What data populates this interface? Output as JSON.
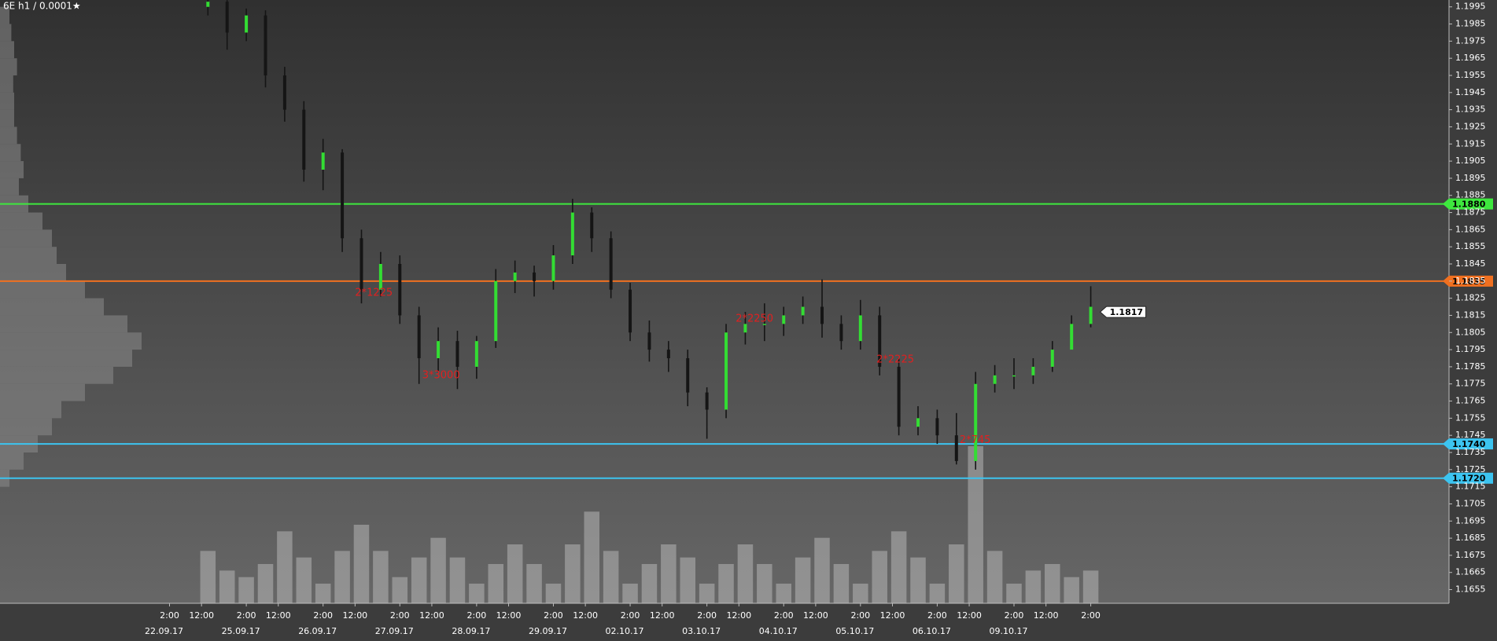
{
  "chart_data": {
    "type": "ohlc",
    "title": "6E h1 / 0.0001★",
    "x": [
      12,
      18,
      24,
      30,
      36,
      42,
      48,
      54,
      60,
      66,
      72,
      78,
      84,
      90,
      96,
      102,
      108,
      114,
      120,
      126,
      132,
      138,
      144,
      150,
      156,
      162,
      168,
      174,
      180,
      186,
      192,
      198,
      204,
      210,
      216,
      222,
      228,
      234,
      240,
      246,
      252,
      258,
      264,
      270,
      276,
      282,
      288
    ],
    "open": [
      1.1995,
      1.1998,
      1.198,
      1.199,
      1.1955,
      1.1935,
      1.19,
      1.191,
      1.186,
      1.183,
      1.1845,
      1.1815,
      1.179,
      1.18,
      1.1785,
      1.18,
      1.1835,
      1.184,
      1.1835,
      1.185,
      1.1875,
      1.186,
      1.183,
      1.1805,
      1.1795,
      1.179,
      1.177,
      1.176,
      1.1805,
      1.181,
      1.181,
      1.1815,
      1.182,
      1.181,
      1.18,
      1.1815,
      1.1785,
      1.175,
      1.1755,
      1.1745,
      1.173,
      1.1775,
      1.178,
      1.178,
      1.1785,
      1.1795,
      1.181
    ],
    "high": [
      1.2003,
      1.1999,
      1.1994,
      1.1993,
      1.196,
      1.194,
      1.1918,
      1.1912,
      1.1865,
      1.1852,
      1.185,
      1.182,
      1.1808,
      1.1806,
      1.1803,
      1.1842,
      1.1847,
      1.1844,
      1.1856,
      1.1883,
      1.1878,
      1.1864,
      1.1834,
      1.1812,
      1.18,
      1.1795,
      1.1773,
      1.181,
      1.1817,
      1.1822,
      1.182,
      1.1826,
      1.1836,
      1.1815,
      1.1824,
      1.182,
      1.179,
      1.1762,
      1.176,
      1.1758,
      1.1782,
      1.1786,
      1.179,
      1.179,
      1.18,
      1.1815,
      1.1832
    ],
    "low": [
      1.199,
      1.197,
      1.1975,
      1.1948,
      1.1928,
      1.1893,
      1.1888,
      1.1852,
      1.1822,
      1.1826,
      1.181,
      1.1775,
      1.1782,
      1.1772,
      1.1778,
      1.1796,
      1.1828,
      1.1826,
      1.183,
      1.1845,
      1.1852,
      1.1825,
      1.18,
      1.1788,
      1.1782,
      1.1762,
      1.1743,
      1.1755,
      1.1798,
      1.18,
      1.1803,
      1.181,
      1.1802,
      1.1795,
      1.1795,
      1.178,
      1.1745,
      1.1745,
      1.174,
      1.1728,
      1.1725,
      1.177,
      1.1772,
      1.1775,
      1.1782,
      1.1795,
      1.1808
    ],
    "close": [
      1.1998,
      1.198,
      1.199,
      1.1955,
      1.1935,
      1.19,
      1.191,
      1.186,
      1.183,
      1.1845,
      1.1815,
      1.179,
      1.18,
      1.1785,
      1.18,
      1.1835,
      1.184,
      1.1835,
      1.185,
      1.1875,
      1.186,
      1.183,
      1.1805,
      1.1795,
      1.179,
      1.177,
      1.176,
      1.1805,
      1.181,
      1.181,
      1.1815,
      1.182,
      1.181,
      1.18,
      1.1815,
      1.1785,
      1.175,
      1.1755,
      1.1745,
      1.173,
      1.1775,
      1.178,
      1.178,
      1.1785,
      1.1795,
      1.181,
      1.182
    ],
    "volume": [
      40,
      25,
      20,
      30,
      55,
      35,
      15,
      40,
      60,
      40,
      20,
      35,
      50,
      35,
      15,
      30,
      45,
      30,
      15,
      45,
      70,
      40,
      15,
      30,
      45,
      35,
      15,
      30,
      45,
      30,
      15,
      35,
      50,
      30,
      15,
      40,
      55,
      35,
      15,
      45,
      120,
      40,
      15,
      25,
      30,
      20,
      25
    ],
    "xlim": [
      -53,
      400
    ],
    "xticks": [
      {
        "value": 0,
        "label": "2:00"
      },
      {
        "value": 10,
        "label": "12:00"
      },
      {
        "value": 24,
        "label": "2:00"
      },
      {
        "value": 34,
        "label": "12:00"
      },
      {
        "value": 48,
        "label": "2:00"
      },
      {
        "value": 58,
        "label": "12:00"
      },
      {
        "value": 72,
        "label": "2:00"
      },
      {
        "value": 82,
        "label": "12:00"
      },
      {
        "value": 96,
        "label": "2:00"
      },
      {
        "value": 106,
        "label": "12:00"
      },
      {
        "value": 120,
        "label": "2:00"
      },
      {
        "value": 130,
        "label": "12:00"
      },
      {
        "value": 144,
        "label": "2:00"
      },
      {
        "value": 154,
        "label": "12:00"
      },
      {
        "value": 168,
        "label": "2:00"
      },
      {
        "value": 178,
        "label": "12:00"
      },
      {
        "value": 192,
        "label": "2:00"
      },
      {
        "value": 202,
        "label": "12:00"
      },
      {
        "value": 216,
        "label": "2:00"
      },
      {
        "value": 226,
        "label": "12:00"
      },
      {
        "value": 240,
        "label": "2:00"
      },
      {
        "value": 250,
        "label": "12:00"
      },
      {
        "value": 264,
        "label": "2:00"
      },
      {
        "value": 274,
        "label": "12:00"
      },
      {
        "value": 288,
        "label": "2:00"
      }
    ],
    "date_ticks": [
      {
        "value": 0,
        "label": "22.09.17"
      },
      {
        "value": 24,
        "label": "25.09.17"
      },
      {
        "value": 48,
        "label": "26.09.17"
      },
      {
        "value": 72,
        "label": "27.09.17"
      },
      {
        "value": 96,
        "label": "28.09.17"
      },
      {
        "value": 120,
        "label": "29.09.17"
      },
      {
        "value": 144,
        "label": "02.10.17"
      },
      {
        "value": 168,
        "label": "03.10.17"
      },
      {
        "value": 192,
        "label": "04.10.17"
      },
      {
        "value": 216,
        "label": "05.10.17"
      },
      {
        "value": 240,
        "label": "06.10.17"
      },
      {
        "value": 264,
        "label": "09.10.17"
      }
    ],
    "ylim": [
      1.1647,
      1.1999
    ],
    "yticks": [
      1.1655,
      1.1665,
      1.1675,
      1.1685,
      1.1695,
      1.1705,
      1.1715,
      1.1725,
      1.1735,
      1.1745,
      1.1755,
      1.1765,
      1.1775,
      1.1785,
      1.1795,
      1.1805,
      1.1815,
      1.1825,
      1.1835,
      1.1845,
      1.1855,
      1.1865,
      1.1875,
      1.1885,
      1.1895,
      1.1905,
      1.1915,
      1.1925,
      1.1935,
      1.1945,
      1.1955,
      1.1965,
      1.1975,
      1.1985,
      1.1995
    ],
    "levels": [
      {
        "value": 1.188,
        "label": "1.1880",
        "color": "#3ee83e"
      },
      {
        "value": 1.1835,
        "label": "1.1835",
        "color": "#f07020"
      },
      {
        "value": 1.174,
        "label": "1.1740",
        "color": "#3cc4f0"
      },
      {
        "value": 1.172,
        "label": "1.1720",
        "color": "#3cc4f0"
      }
    ],
    "last_price": 1.1817,
    "annotations": [
      {
        "text": "2*1225",
        "x": 58,
        "price": 1.1828
      },
      {
        "text": "3*3000",
        "x": 79,
        "price": 1.178
      },
      {
        "text": "2*2250",
        "x": 177,
        "price": 1.1813
      },
      {
        "text": "2*2225",
        "x": 221,
        "price": 1.1789
      },
      {
        "text": "2*745",
        "x": 247,
        "price": 1.1742
      }
    ],
    "profile": {
      "prices": [
        1.172,
        1.173,
        1.174,
        1.175,
        1.176,
        1.177,
        1.178,
        1.179,
        1.18,
        1.181,
        1.182,
        1.183,
        1.184,
        1.185,
        1.186,
        1.187,
        1.188,
        1.189,
        1.19,
        1.191,
        1.192,
        1.193,
        1.194,
        1.195,
        1.196,
        1.197,
        1.198,
        1.199
      ],
      "widths": [
        10,
        25,
        40,
        55,
        65,
        90,
        120,
        140,
        150,
        135,
        110,
        90,
        70,
        60,
        55,
        45,
        30,
        20,
        25,
        22,
        18,
        15,
        15,
        14,
        18,
        15,
        12,
        10
      ]
    },
    "colors": {
      "up": "#33dd33",
      "down": "#151515",
      "volume": "#c8c8c8",
      "profile": "#8a8a8a"
    }
  }
}
